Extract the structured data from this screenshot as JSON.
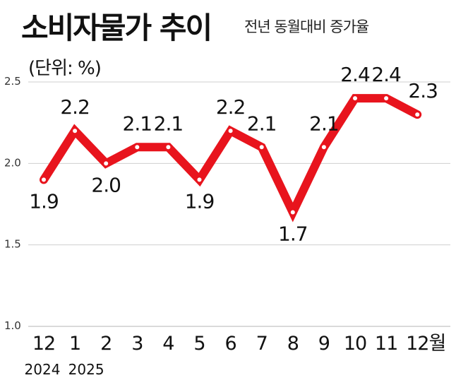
{
  "title": "소비자물가 추이",
  "subtitle": "전년 동월대비 증가율",
  "unit_label": "(단위: %)",
  "chart_data": {
    "type": "line",
    "categories": [
      "12",
      "1",
      "2",
      "3",
      "4",
      "5",
      "6",
      "7",
      "8",
      "9",
      "10",
      "11",
      "12월"
    ],
    "year_labels": [
      "2024",
      "2025"
    ],
    "values": [
      1.9,
      2.2,
      2.0,
      2.1,
      2.1,
      1.9,
      2.2,
      2.1,
      1.7,
      2.1,
      2.4,
      2.4,
      2.3
    ],
    "data_labels": [
      "1.9",
      "2.2",
      "2.0",
      "2.1",
      "2.1",
      "1.9",
      "2.2",
      "2.1",
      "1.7",
      "2.1",
      "2.4",
      "2.4",
      "2.3"
    ],
    "yticks": [
      "1.0",
      "1.5",
      "2.0",
      "2.5"
    ],
    "ylim": [
      1.0,
      2.5
    ],
    "grid": true,
    "line_color": "#e8141d"
  }
}
